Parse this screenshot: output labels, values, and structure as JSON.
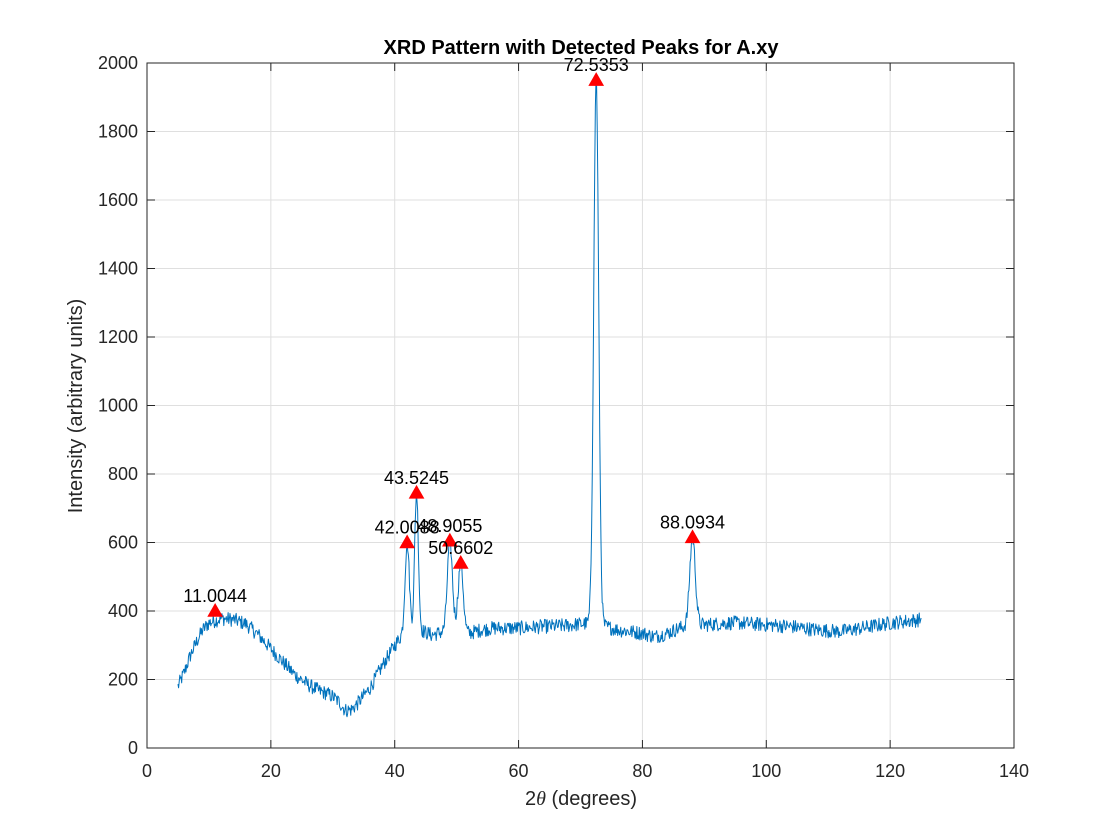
{
  "chart_data": {
    "type": "line",
    "title": "XRD Pattern with Detected Peaks for A.xy",
    "xlabel_prefix": "2",
    "xlabel_symbol": "θ",
    "xlabel_suffix": " (degrees)",
    "ylabel": "Intensity (arbitrary units)",
    "xlim": [
      0,
      140
    ],
    "ylim": [
      0,
      2000
    ],
    "xticks": [
      0,
      20,
      40,
      60,
      80,
      100,
      120,
      140
    ],
    "yticks": [
      0,
      200,
      400,
      600,
      800,
      1000,
      1200,
      1400,
      1600,
      1800,
      2000
    ],
    "grid": true,
    "line_color": "#0072BD",
    "marker_color": "#FF0000",
    "x_start": 5,
    "x_end": 125,
    "baseline_points": [
      [
        5,
        180
      ],
      [
        6,
        220
      ],
      [
        7,
        270
      ],
      [
        8,
        310
      ],
      [
        9,
        345
      ],
      [
        10,
        365
      ],
      [
        11,
        372
      ],
      [
        12,
        378
      ],
      [
        14,
        375
      ],
      [
        16,
        362
      ],
      [
        18,
        330
      ],
      [
        20,
        290
      ],
      [
        22,
        250
      ],
      [
        24,
        212
      ],
      [
        26,
        185
      ],
      [
        28,
        165
      ],
      [
        29,
        160
      ],
      [
        30,
        150
      ],
      [
        31,
        135
      ],
      [
        32,
        110
      ],
      [
        33,
        112
      ],
      [
        34,
        130
      ],
      [
        36,
        175
      ],
      [
        38,
        240
      ],
      [
        40,
        300
      ],
      [
        41,
        325
      ],
      [
        42,
        335
      ],
      [
        43,
        345
      ],
      [
        44,
        345
      ],
      [
        46,
        330
      ],
      [
        48,
        340
      ],
      [
        50,
        350
      ],
      [
        52,
        335
      ],
      [
        54,
        345
      ],
      [
        56,
        350
      ],
      [
        58,
        350
      ],
      [
        60,
        350
      ],
      [
        62,
        352
      ],
      [
        64,
        355
      ],
      [
        66,
        356
      ],
      [
        68,
        358
      ],
      [
        70,
        362
      ],
      [
        72,
        365
      ],
      [
        74,
        355
      ],
      [
        76,
        345
      ],
      [
        78,
        340
      ],
      [
        80,
        335
      ],
      [
        82,
        325
      ],
      [
        84,
        335
      ],
      [
        86,
        350
      ],
      [
        88,
        360
      ],
      [
        90,
        360
      ],
      [
        92,
        362
      ],
      [
        94,
        365
      ],
      [
        96,
        365
      ],
      [
        98,
        362
      ],
      [
        100,
        360
      ],
      [
        104,
        355
      ],
      [
        108,
        345
      ],
      [
        112,
        340
      ],
      [
        116,
        352
      ],
      [
        120,
        365
      ],
      [
        125,
        375
      ]
    ],
    "peaks": [
      {
        "x": 11.0044,
        "y": 400,
        "label": "11.0044",
        "width": 0.1
      },
      {
        "x": 42.0088,
        "y": 600,
        "label": "42.0088",
        "width": 0.35
      },
      {
        "x": 43.5245,
        "y": 745,
        "label": "43.5245",
        "width": 0.3
      },
      {
        "x": 48.9055,
        "y": 605,
        "label": "48.9055",
        "width": 0.4
      },
      {
        "x": 50.6602,
        "y": 540,
        "label": "50.6602",
        "width": 0.4
      },
      {
        "x": 72.5353,
        "y": 1950,
        "label": "72.5353",
        "width": 0.4
      },
      {
        "x": 88.0934,
        "y": 615,
        "label": "88.0934",
        "width": 0.45
      }
    ]
  }
}
